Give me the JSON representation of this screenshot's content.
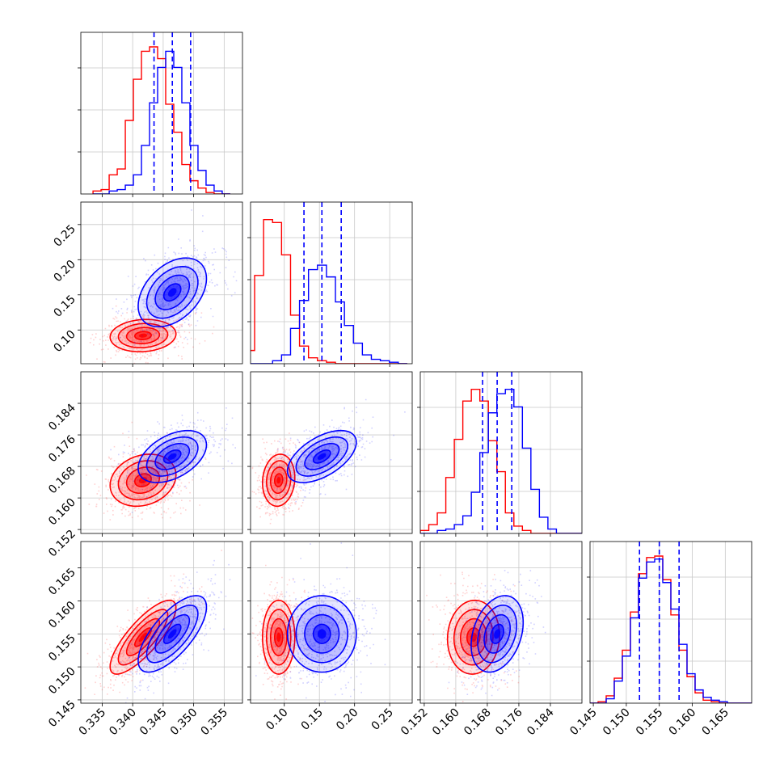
{
  "chart_data": {
    "type": "corner",
    "grid": true,
    "colors": {
      "series_a": "#ff0000",
      "series_b": "#0000ff"
    },
    "series": [
      {
        "color": "#ff0000",
        "means": [
          0.3417,
          0.092,
          0.1645,
          0.1545
        ],
        "sds": [
          0.0027,
          0.0115,
          0.0033,
          0.0028
        ]
      },
      {
        "color": "#0000ff",
        "means": [
          0.3465,
          0.1535,
          0.1705,
          0.155
        ],
        "sds": [
          0.0028,
          0.0245,
          0.0033,
          0.0029
        ]
      }
    ],
    "quantile_lines": [
      [
        0.3435,
        0.3465,
        0.3495
      ],
      [
        0.128,
        0.1535,
        0.181
      ],
      [
        0.1668,
        0.1705,
        0.1742
      ],
      [
        0.152,
        0.155,
        0.158
      ]
    ],
    "histograms": [
      {
        "bins": [
          0.3335,
          0.356,
          17
        ],
        "red": [
          0.02,
          0.03,
          0.13,
          0.17,
          0.5,
          0.78,
          0.97,
          1.0,
          0.92,
          0.61,
          0.42,
          0.2,
          0.09,
          0.04,
          0.01,
          0.0,
          0.0
        ],
        "blue": [
          0.0,
          0.0,
          0.02,
          0.03,
          0.06,
          0.13,
          0.33,
          0.62,
          0.86,
          0.97,
          0.86,
          0.62,
          0.33,
          0.16,
          0.06,
          0.02,
          0.0
        ]
      },
      {
        "bins": [
          0.045,
          0.275,
          18
        ],
        "red": [
          0.09,
          0.6,
          0.98,
          0.96,
          0.74,
          0.33,
          0.12,
          0.04,
          0.02,
          0.01,
          0.0,
          0.0,
          0.0,
          0.0,
          0.0,
          0.0,
          0.0,
          0.0
        ],
        "blue": [
          0.0,
          0.0,
          0.0,
          0.02,
          0.06,
          0.24,
          0.43,
          0.64,
          0.67,
          0.59,
          0.42,
          0.26,
          0.14,
          0.06,
          0.03,
          0.02,
          0.01,
          0.0
        ],
        "yscale_max": 1.0
      },
      {
        "bins": [
          0.151,
          0.192,
          19
        ],
        "red": [
          0.02,
          0.06,
          0.14,
          0.38,
          0.64,
          0.9,
          0.98,
          0.9,
          0.63,
          0.42,
          0.14,
          0.05,
          0.02,
          0.0,
          0.0,
          0.0,
          0.0,
          0.0,
          0.0
        ],
        "blue": [
          0.0,
          0.0,
          0.02,
          0.03,
          0.06,
          0.12,
          0.28,
          0.55,
          0.82,
          0.95,
          0.98,
          0.86,
          0.58,
          0.3,
          0.11,
          0.03,
          0.0,
          0.0,
          0.0
        ]
      },
      {
        "bins": [
          0.1445,
          0.169,
          20
        ],
        "red": [
          0.0,
          0.01,
          0.05,
          0.17,
          0.36,
          0.62,
          0.88,
          0.99,
          1.0,
          0.84,
          0.6,
          0.36,
          0.18,
          0.07,
          0.02,
          0.01,
          0.0,
          0.0,
          0.0,
          0.0
        ],
        "blue": [
          0.0,
          0.0,
          0.03,
          0.15,
          0.32,
          0.58,
          0.85,
          0.96,
          0.98,
          0.82,
          0.64,
          0.4,
          0.2,
          0.09,
          0.04,
          0.02,
          0.01,
          0.0,
          0.0,
          0.0
        ]
      }
    ],
    "pairs": [
      {
        "row": 1,
        "col": 0,
        "rho_red": 0.1,
        "rho_blue": 0.4
      },
      {
        "row": 2,
        "col": 0,
        "rho_red": 0.2,
        "rho_blue": 0.45
      },
      {
        "row": 2,
        "col": 1,
        "rho_red": 0.1,
        "rho_blue": 0.55
      },
      {
        "row": 3,
        "col": 0,
        "rho_red": 0.8,
        "rho_blue": 0.7
      },
      {
        "row": 3,
        "col": 1,
        "rho_red": 0.0,
        "rho_blue": 0.0
      },
      {
        "row": 3,
        "col": 2,
        "rho_red": 0.05,
        "rho_blue": 0.3
      }
    ],
    "axes": [
      {
        "range": [
          0.3315,
          0.358
        ],
        "ticks": [
          0.335,
          0.34,
          0.345,
          0.35,
          0.355
        ],
        "tick_labels": [
          "0.335",
          "0.340",
          "0.345",
          "0.350",
          "0.355"
        ]
      },
      {
        "range": [
          0.052,
          0.282
        ],
        "ticks": [
          0.1,
          0.15,
          0.2,
          0.25
        ],
        "tick_labels": [
          "0.10",
          "0.15",
          "0.20",
          "0.25"
        ]
      },
      {
        "range": [
          0.151,
          0.192
        ],
        "ticks": [
          0.152,
          0.16,
          0.168,
          0.176,
          0.184
        ],
        "tick_labels": [
          "0.152",
          "0.160",
          "0.168",
          "0.176",
          "0.184"
        ]
      },
      {
        "range": [
          0.1445,
          0.169
        ],
        "ticks": [
          0.145,
          0.15,
          0.155,
          0.16,
          0.165
        ],
        "tick_labels": [
          "0.145",
          "0.150",
          "0.155",
          "0.160",
          "0.165"
        ]
      }
    ]
  }
}
